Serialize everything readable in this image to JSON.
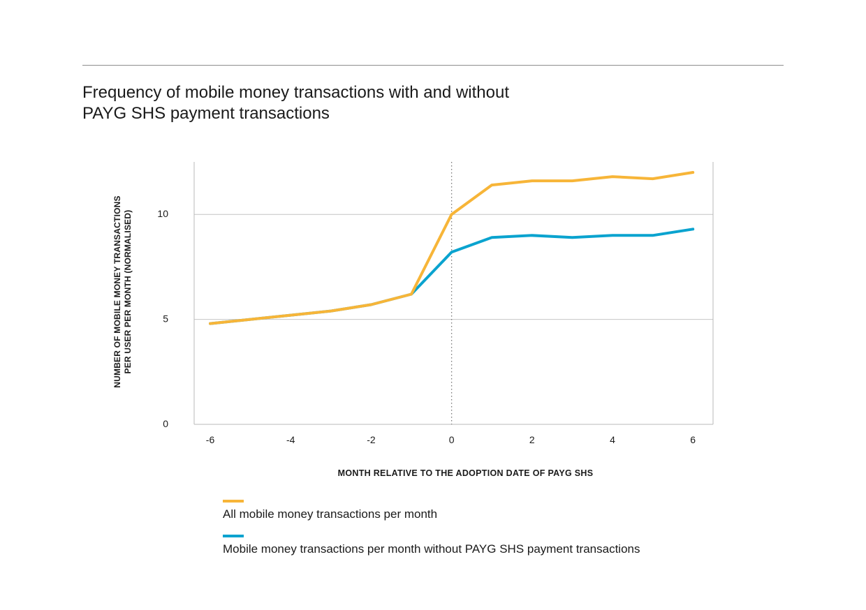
{
  "page": {
    "title_lines": [
      "Frequency of mobile money transactions with and without",
      "PAYG SHS payment transactions"
    ]
  },
  "chart_data": {
    "type": "line",
    "title": "Frequency of mobile money transactions with and without PAYG SHS payment transactions",
    "xlabel": "MONTH RELATIVE TO THE ADOPTION DATE OF PAYG SHS",
    "ylabel_lines": [
      "NUMBER OF MOBILE MONEY TRANSACTIONS",
      "PER USER PER MONTH (NORMALISED)"
    ],
    "x": [
      -6,
      -5,
      -4,
      -3,
      -2,
      -1,
      0,
      1,
      2,
      3,
      4,
      5,
      6
    ],
    "xticks": [
      -6,
      -4,
      -2,
      0,
      2,
      4,
      6
    ],
    "xtick_labels": [
      "-6",
      "-4",
      "-2",
      "0",
      "2",
      "4",
      "6"
    ],
    "yticks": [
      0,
      5,
      10
    ],
    "ytick_labels": [
      "0",
      "5",
      "10"
    ],
    "xlim": [
      -6.4,
      6.5
    ],
    "ylim": [
      0,
      12.5
    ],
    "grid": "horizontal",
    "reference_line": {
      "x": 0,
      "style": "dotted"
    },
    "series": [
      {
        "name": "All mobile money transactions per month",
        "color": "#f7b538",
        "values": [
          4.8,
          5.0,
          5.2,
          5.4,
          5.7,
          6.2,
          10.0,
          11.4,
          11.6,
          11.6,
          11.8,
          11.7,
          12.0
        ]
      },
      {
        "name": "Mobile money transactions per month without PAYG SHS payment transactions",
        "color": "#0aa3cf",
        "values": [
          4.8,
          5.0,
          5.2,
          5.4,
          5.7,
          6.2,
          8.2,
          8.9,
          9.0,
          8.9,
          9.0,
          9.0,
          9.3
        ]
      }
    ],
    "legend_placement": "bottom"
  }
}
